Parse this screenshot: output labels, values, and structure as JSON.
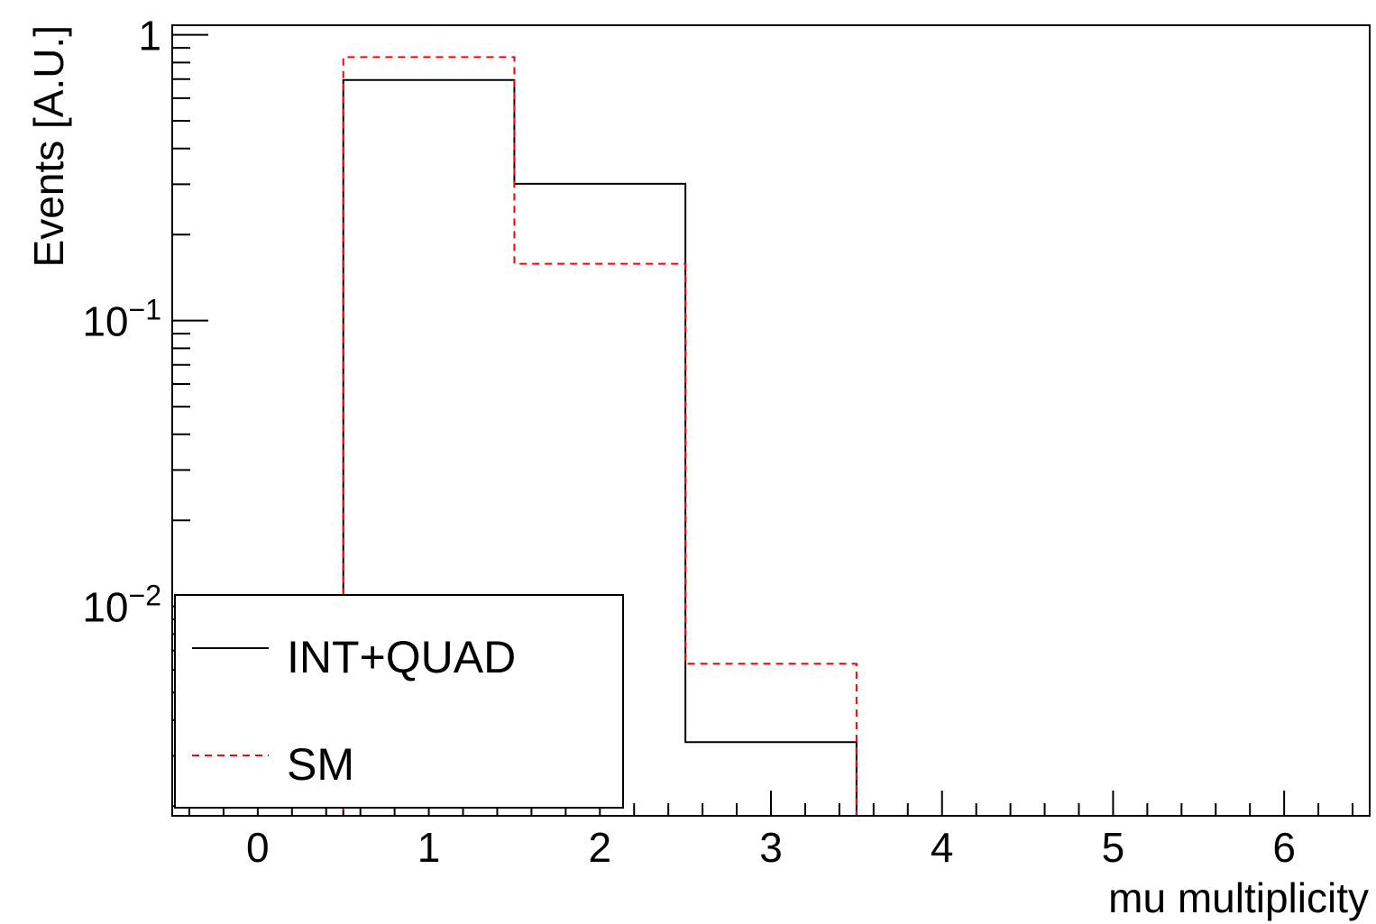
{
  "chart_data": {
    "type": "histogram",
    "xlabel": "mu multiplicity",
    "ylabel": "Events [A.U.]",
    "xlim": [
      -0.5,
      6.5
    ],
    "ylim": [
      0.00185,
      1.08
    ],
    "ylog": true,
    "x_ticks": [
      {
        "value": 0,
        "label": "0"
      },
      {
        "value": 1,
        "label": "1"
      },
      {
        "value": 2,
        "label": "2"
      },
      {
        "value": 3,
        "label": "3"
      },
      {
        "value": 4,
        "label": "4"
      },
      {
        "value": 5,
        "label": "5"
      },
      {
        "value": 6,
        "label": "6"
      }
    ],
    "y_ticks": [
      {
        "value": 1,
        "base": "1",
        "exp": ""
      },
      {
        "value": 0.1,
        "base": "10",
        "exp": "−1"
      },
      {
        "value": 0.01,
        "base": "10",
        "exp": "−2"
      }
    ],
    "bin_edges": [
      -0.5,
      0.5,
      1.5,
      2.5,
      3.5,
      4.5,
      5.5,
      6.5
    ],
    "series": [
      {
        "name": "INT+QUAD",
        "color": "#000000",
        "style": "solid",
        "values": [
          0,
          0.695,
          0.301,
          0.00335,
          0,
          0,
          0
        ]
      },
      {
        "name": "SM",
        "color": "#ff0000",
        "style": "dashed",
        "values": [
          0,
          0.835,
          0.158,
          0.0063,
          0,
          0,
          0
        ]
      }
    ],
    "legend": {
      "position": "bottom-left"
    }
  }
}
